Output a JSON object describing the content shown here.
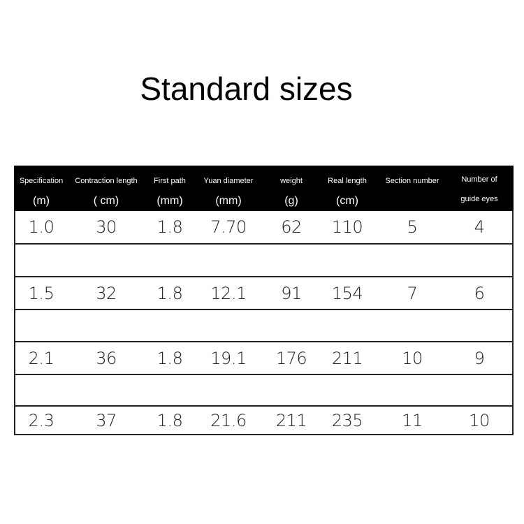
{
  "title": "Standard sizes",
  "columns": [
    {
      "name": "Specification",
      "unit": "(m)"
    },
    {
      "name": "Contraction length",
      "unit": "( cm)"
    },
    {
      "name": "First path",
      "unit": "(mm)"
    },
    {
      "name": "Yuan diameter",
      "unit": "(mm)"
    },
    {
      "name": "weight",
      "unit": "(g)"
    },
    {
      "name": "Real length",
      "unit": "(cm)"
    },
    {
      "name": "Section number",
      "unit": ""
    },
    {
      "name": "Number of",
      "unit": "guide eyes"
    }
  ],
  "rows": [
    [
      "1.0",
      "30",
      "1.8",
      "7.70",
      "62",
      "110",
      "5",
      "4"
    ],
    [],
    [
      "1.5",
      "32",
      "1.8",
      "12.1",
      "91",
      "154",
      "7",
      "6"
    ],
    [],
    [
      "2.1",
      "36",
      "1.8",
      "19.1",
      "176",
      "211",
      "10",
      "9"
    ],
    [],
    [
      "2.3",
      "37",
      "1.8",
      "21.6",
      "211",
      "235",
      "11",
      "10"
    ]
  ]
}
